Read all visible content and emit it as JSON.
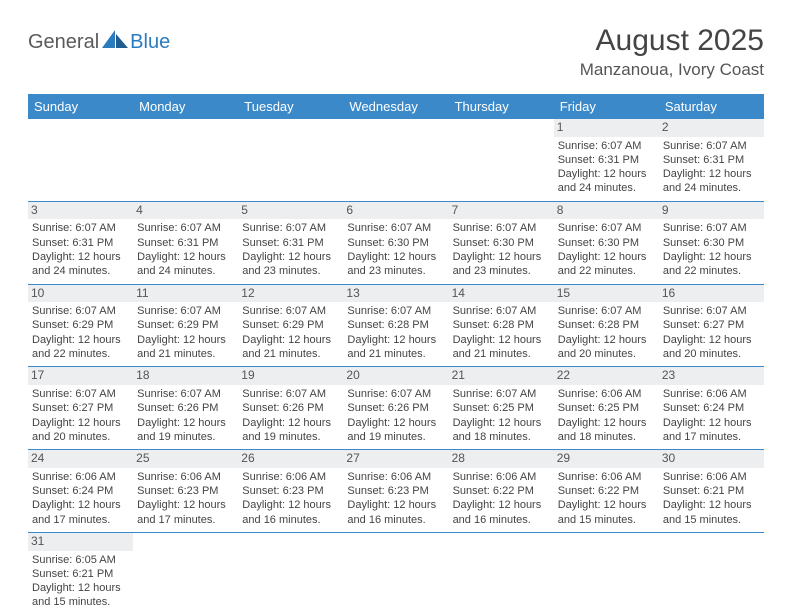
{
  "logo": {
    "part1": "General",
    "part2": "Blue"
  },
  "title": "August 2025",
  "subtitle": "Manzanoua, Ivory Coast",
  "colors": {
    "header_bg": "#3b89c9",
    "header_text": "#ffffff",
    "daynum_bg": "#eceeef",
    "border": "#3b89c9",
    "logo_blue": "#2b7bbf",
    "logo_gray": "#5a5a5a"
  },
  "weekdays": [
    "Sunday",
    "Monday",
    "Tuesday",
    "Wednesday",
    "Thursday",
    "Friday",
    "Saturday"
  ],
  "weeks": [
    [
      null,
      null,
      null,
      null,
      null,
      {
        "n": "1",
        "sr": "6:07 AM",
        "ss": "6:31 PM",
        "dl": "12 hours and 24 minutes."
      },
      {
        "n": "2",
        "sr": "6:07 AM",
        "ss": "6:31 PM",
        "dl": "12 hours and 24 minutes."
      }
    ],
    [
      {
        "n": "3",
        "sr": "6:07 AM",
        "ss": "6:31 PM",
        "dl": "12 hours and 24 minutes."
      },
      {
        "n": "4",
        "sr": "6:07 AM",
        "ss": "6:31 PM",
        "dl": "12 hours and 24 minutes."
      },
      {
        "n": "5",
        "sr": "6:07 AM",
        "ss": "6:31 PM",
        "dl": "12 hours and 23 minutes."
      },
      {
        "n": "6",
        "sr": "6:07 AM",
        "ss": "6:30 PM",
        "dl": "12 hours and 23 minutes."
      },
      {
        "n": "7",
        "sr": "6:07 AM",
        "ss": "6:30 PM",
        "dl": "12 hours and 23 minutes."
      },
      {
        "n": "8",
        "sr": "6:07 AM",
        "ss": "6:30 PM",
        "dl": "12 hours and 22 minutes."
      },
      {
        "n": "9",
        "sr": "6:07 AM",
        "ss": "6:30 PM",
        "dl": "12 hours and 22 minutes."
      }
    ],
    [
      {
        "n": "10",
        "sr": "6:07 AM",
        "ss": "6:29 PM",
        "dl": "12 hours and 22 minutes."
      },
      {
        "n": "11",
        "sr": "6:07 AM",
        "ss": "6:29 PM",
        "dl": "12 hours and 21 minutes."
      },
      {
        "n": "12",
        "sr": "6:07 AM",
        "ss": "6:29 PM",
        "dl": "12 hours and 21 minutes."
      },
      {
        "n": "13",
        "sr": "6:07 AM",
        "ss": "6:28 PM",
        "dl": "12 hours and 21 minutes."
      },
      {
        "n": "14",
        "sr": "6:07 AM",
        "ss": "6:28 PM",
        "dl": "12 hours and 21 minutes."
      },
      {
        "n": "15",
        "sr": "6:07 AM",
        "ss": "6:28 PM",
        "dl": "12 hours and 20 minutes."
      },
      {
        "n": "16",
        "sr": "6:07 AM",
        "ss": "6:27 PM",
        "dl": "12 hours and 20 minutes."
      }
    ],
    [
      {
        "n": "17",
        "sr": "6:07 AM",
        "ss": "6:27 PM",
        "dl": "12 hours and 20 minutes."
      },
      {
        "n": "18",
        "sr": "6:07 AM",
        "ss": "6:26 PM",
        "dl": "12 hours and 19 minutes."
      },
      {
        "n": "19",
        "sr": "6:07 AM",
        "ss": "6:26 PM",
        "dl": "12 hours and 19 minutes."
      },
      {
        "n": "20",
        "sr": "6:07 AM",
        "ss": "6:26 PM",
        "dl": "12 hours and 19 minutes."
      },
      {
        "n": "21",
        "sr": "6:07 AM",
        "ss": "6:25 PM",
        "dl": "12 hours and 18 minutes."
      },
      {
        "n": "22",
        "sr": "6:06 AM",
        "ss": "6:25 PM",
        "dl": "12 hours and 18 minutes."
      },
      {
        "n": "23",
        "sr": "6:06 AM",
        "ss": "6:24 PM",
        "dl": "12 hours and 17 minutes."
      }
    ],
    [
      {
        "n": "24",
        "sr": "6:06 AM",
        "ss": "6:24 PM",
        "dl": "12 hours and 17 minutes."
      },
      {
        "n": "25",
        "sr": "6:06 AM",
        "ss": "6:23 PM",
        "dl": "12 hours and 17 minutes."
      },
      {
        "n": "26",
        "sr": "6:06 AM",
        "ss": "6:23 PM",
        "dl": "12 hours and 16 minutes."
      },
      {
        "n": "27",
        "sr": "6:06 AM",
        "ss": "6:23 PM",
        "dl": "12 hours and 16 minutes."
      },
      {
        "n": "28",
        "sr": "6:06 AM",
        "ss": "6:22 PM",
        "dl": "12 hours and 16 minutes."
      },
      {
        "n": "29",
        "sr": "6:06 AM",
        "ss": "6:22 PM",
        "dl": "12 hours and 15 minutes."
      },
      {
        "n": "30",
        "sr": "6:06 AM",
        "ss": "6:21 PM",
        "dl": "12 hours and 15 minutes."
      }
    ],
    [
      {
        "n": "31",
        "sr": "6:05 AM",
        "ss": "6:21 PM",
        "dl": "12 hours and 15 minutes."
      },
      null,
      null,
      null,
      null,
      null,
      null
    ]
  ],
  "labels": {
    "sunrise": "Sunrise:",
    "sunset": "Sunset:",
    "daylight": "Daylight:"
  }
}
